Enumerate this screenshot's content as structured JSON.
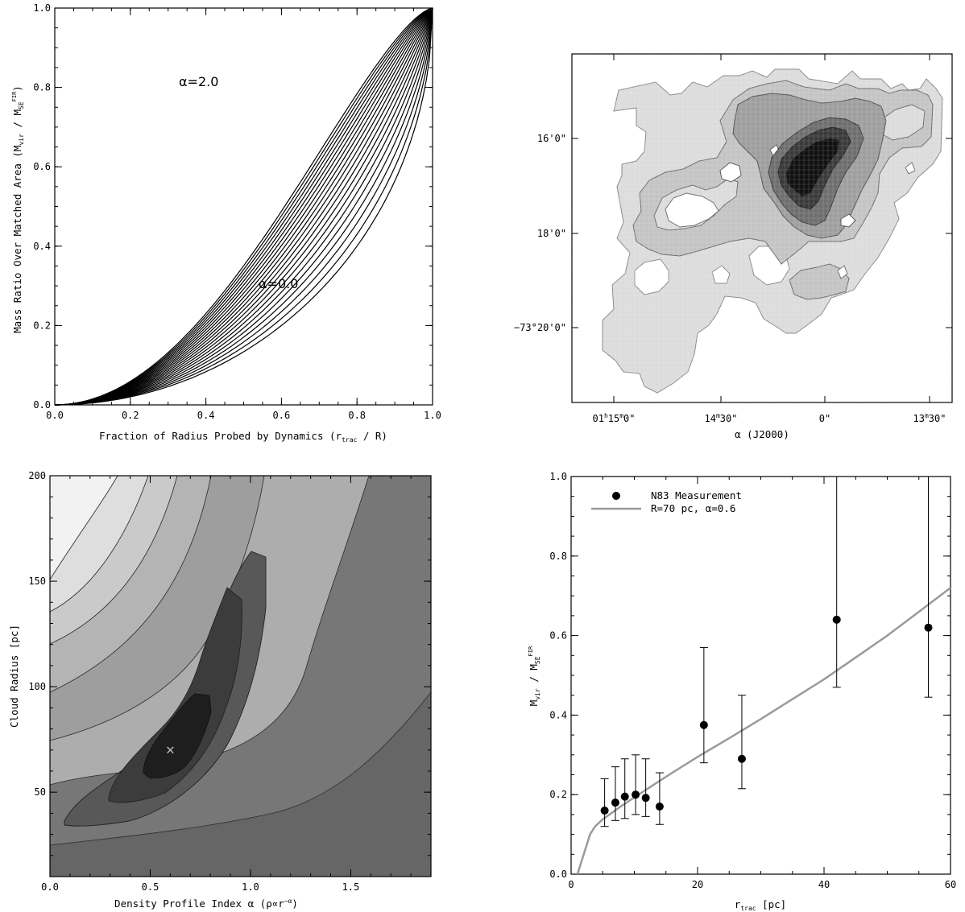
{
  "chart_data": [
    {
      "id": "panel-a",
      "type": "line",
      "xlabel": "Fraction of Radius Probed by Dynamics (r",
      "xlabel_sub": "trac",
      "xlabel_tail": " / R)",
      "ylabel": "Mass Ratio Over Matched Area (M",
      "ylabel_sub1": "vir",
      "ylabel_mid": " / M",
      "ylabel_sub2": "SE",
      "ylabel_sup2": "FIR",
      "ylabel_tail": ")",
      "xlim": [
        0,
        1
      ],
      "ylim": [
        0,
        1
      ],
      "xticks": [
        "0.0",
        "0.2",
        "0.4",
        "0.6",
        "0.8",
        "1.0"
      ],
      "yticks": [
        "0.0",
        "0.2",
        "0.4",
        "0.6",
        "0.8",
        "1.0"
      ],
      "alpha_min": 0.0,
      "alpha_max": 2.0,
      "alpha_step": 0.1,
      "curve_family": "M(<r)/M(R) with r = x, rho ∝ r^-alpha, alpha from 0.0 to 2.0",
      "annotations": [
        {
          "text": "α=2.0",
          "x": 0.36,
          "y": 0.81
        },
        {
          "text": "α=0.0",
          "x": 0.6,
          "y": 0.3
        }
      ]
    },
    {
      "id": "panel-b",
      "type": "heatmap",
      "xlabel": "α (J2000)",
      "xticks": [
        "01",
        "h",
        "15",
        "m",
        "0\"",
        "14",
        "m",
        "30\"",
        "0\"",
        "13",
        "m",
        "30\""
      ],
      "xtick_labels": [
        {
          "main": "01",
          "sup1": "h",
          "mid": "15",
          "sup2": "m",
          "tail": "0\""
        },
        {
          "main": "14",
          "sup1": "m",
          "mid": "30\"",
          "sup2": "",
          "tail": ""
        },
        {
          "main": "0\"",
          "sup1": "",
          "mid": "",
          "sup2": "",
          "tail": ""
        },
        {
          "main": "13",
          "sup1": "m",
          "mid": "30\"",
          "sup2": "",
          "tail": ""
        }
      ],
      "ytick_labels": [
        "16'0\"",
        "18'0\"",
        "−73°20'0\""
      ],
      "contour_levels": 5
    },
    {
      "id": "panel-c",
      "type": "heatmap",
      "xlabel": "Density Profile Index α (ρ∝r",
      "xlabel_sup": "−α",
      "xlabel_tail": ")",
      "ylabel": "Cloud Radius [pc]",
      "xlim": [
        0,
        1.9
      ],
      "ylim": [
        10,
        200
      ],
      "xticks": [
        "0.0",
        "0.5",
        "1.0",
        "1.5"
      ],
      "yticks": [
        "50",
        "100",
        "150",
        "200"
      ],
      "best_fit": {
        "alpha": 0.6,
        "radius": 70
      },
      "marker": "×"
    },
    {
      "id": "panel-d",
      "type": "scatter",
      "xlabel": "r",
      "xlabel_sub": "trac",
      "xlabel_tail": " [pc]",
      "ylabel": "M",
      "ylabel_sub1": "vir",
      "ylabel_mid": " / M",
      "ylabel_sub2": "SE",
      "ylabel_sup2": "FIR",
      "xlim": [
        0,
        60
      ],
      "ylim": [
        0,
        1
      ],
      "xticks": [
        "0",
        "20",
        "40",
        "60"
      ],
      "yticks": [
        "0.0",
        "0.2",
        "0.4",
        "0.6",
        "0.8",
        "1.0"
      ],
      "legend": [
        {
          "label": "N83 Measurement",
          "kind": "point"
        },
        {
          "label": "R=70 pc, α=0.6",
          "kind": "line"
        }
      ],
      "legend_position": "top-left",
      "points": [
        {
          "x": 5.3,
          "y": 0.16,
          "lo": 0.12,
          "hi": 0.24
        },
        {
          "x": 7.0,
          "y": 0.18,
          "lo": 0.135,
          "hi": 0.27
        },
        {
          "x": 8.5,
          "y": 0.195,
          "lo": 0.14,
          "hi": 0.29
        },
        {
          "x": 10.2,
          "y": 0.2,
          "lo": 0.15,
          "hi": 0.3
        },
        {
          "x": 11.8,
          "y": 0.192,
          "lo": 0.145,
          "hi": 0.29
        },
        {
          "x": 14.0,
          "y": 0.17,
          "lo": 0.125,
          "hi": 0.255
        },
        {
          "x": 21.0,
          "y": 0.375,
          "lo": 0.28,
          "hi": 0.57
        },
        {
          "x": 27.0,
          "y": 0.29,
          "lo": 0.215,
          "hi": 0.45
        },
        {
          "x": 42.0,
          "y": 0.64,
          "lo": 0.47,
          "hi": 1.0
        },
        {
          "x": 56.5,
          "y": 0.62,
          "lo": 0.445,
          "hi": 1.0
        }
      ],
      "model_curve": {
        "x": [
          1.0,
          2.0,
          3.0,
          3.8,
          5,
          8,
          12,
          16,
          20,
          25,
          30,
          35,
          40,
          45,
          50,
          55,
          60
        ],
        "y": [
          0.0,
          0.05,
          0.1,
          0.12,
          0.138,
          0.172,
          0.214,
          0.255,
          0.295,
          0.342,
          0.39,
          0.44,
          0.49,
          0.545,
          0.6,
          0.66,
          0.72
        ]
      },
      "colors": {
        "model": "#9a9a9a",
        "points": "#000000"
      }
    }
  ]
}
